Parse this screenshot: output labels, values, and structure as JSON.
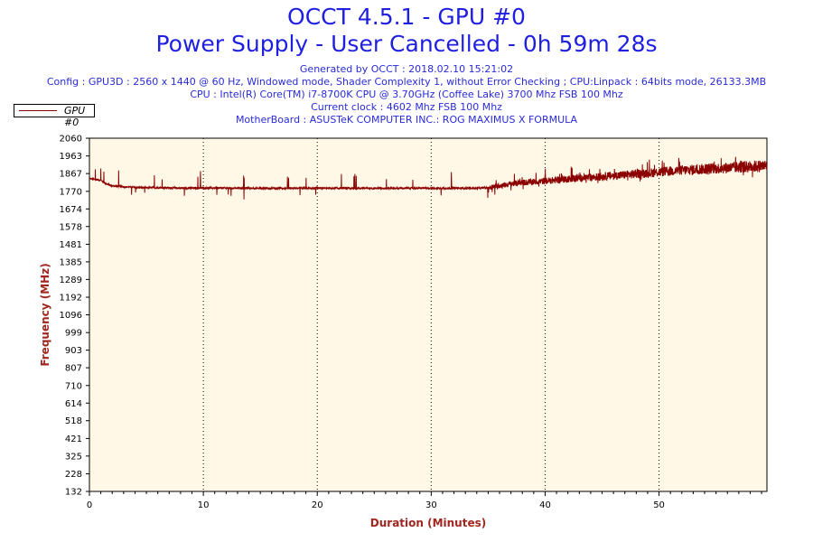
{
  "chart_data": {
    "type": "line",
    "title": "OCCT 4.5.1 - GPU #0",
    "subtitle": "Power Supply - User Cancelled - 0h 59m 28s",
    "info_lines": [
      "Generated by OCCT : 2018.02.10 15:21:02",
      "Config : GPU3D : 2560 x 1440 @ 60 Hz, Windowed mode, Shader Complexity 1, without Error Checking ; CPU:Linpack : 64bits mode, 26133.3MB",
      "CPU : Intel(R) Core(TM) i7-8700K CPU @ 3.70GHz (Coffee Lake) 3700 Mhz FSB 100 Mhz",
      "Current clock : 4602 Mhz FSB 100 Mhz",
      "MotherBoard : ASUSTeK COMPUTER INC.: ROG MAXIMUS X FORMULA"
    ],
    "xlabel": "Duration (Minutes)",
    "ylabel": "Frequency (MHz)",
    "xlim": [
      0,
      59.47
    ],
    "ylim": [
      132,
      2060
    ],
    "x_ticks": [
      0,
      10,
      20,
      30,
      40,
      50
    ],
    "y_ticks": [
      132,
      228,
      325,
      421,
      518,
      614,
      710,
      807,
      903,
      999,
      1096,
      1192,
      1289,
      1385,
      1481,
      1578,
      1674,
      1770,
      1867,
      1963,
      2060
    ],
    "grid": "vertical-dotted",
    "legend_position": "top-left",
    "series": [
      {
        "name": "GPU #0",
        "color": "#8b0000",
        "x": [
          0,
          0.5,
          1,
          1.5,
          2,
          3,
          4,
          5,
          6,
          8,
          10,
          12,
          14,
          16,
          18,
          20,
          22,
          24,
          26,
          28,
          30,
          32,
          34,
          35,
          36,
          37,
          38,
          39,
          40,
          41,
          42,
          43,
          44,
          45,
          46,
          47,
          48,
          49,
          50,
          51,
          52,
          53,
          54,
          55,
          56,
          57,
          58,
          59,
          59.47
        ],
        "values": [
          1840,
          1835,
          1830,
          1810,
          1800,
          1795,
          1792,
          1790,
          1790,
          1788,
          1788,
          1788,
          1787,
          1787,
          1787,
          1787,
          1787,
          1787,
          1787,
          1787,
          1787,
          1787,
          1787,
          1790,
          1800,
          1810,
          1818,
          1822,
          1826,
          1832,
          1838,
          1843,
          1846,
          1850,
          1855,
          1860,
          1865,
          1870,
          1875,
          1880,
          1885,
          1888,
          1892,
          1895,
          1898,
          1902,
          1905,
          1908,
          1910
        ]
      }
    ]
  }
}
